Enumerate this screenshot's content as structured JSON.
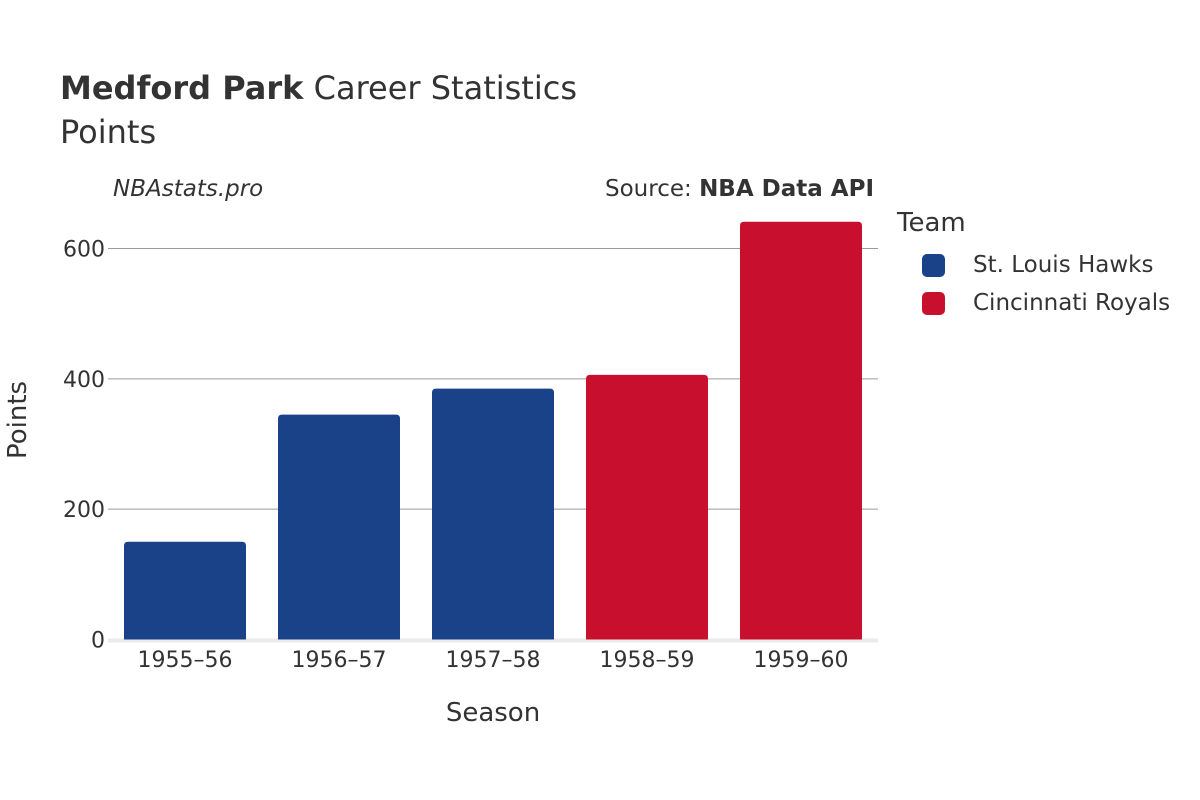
{
  "header": {
    "title_bold": "Medford Park",
    "title_rest": "Career Statistics",
    "subtitle": "Points",
    "site": "NBAstats.pro",
    "source_prefix": "Source: ",
    "source_bold": "NBA Data API"
  },
  "legend": {
    "title": "Team",
    "items": [
      {
        "label": "St. Louis Hawks",
        "color": "#1a4289"
      },
      {
        "label": "Cincinnati Royals",
        "color": "#c8102e"
      }
    ]
  },
  "chart_data": {
    "type": "bar",
    "xlabel": "Season",
    "ylabel": "Points",
    "ylim": [
      0,
      650
    ],
    "yticks": [
      0,
      200,
      400,
      600
    ],
    "grid": true,
    "legend_placement": "right",
    "categories": [
      "1955–56",
      "1956–57",
      "1957–58",
      "1958–59",
      "1959–60"
    ],
    "values": [
      150,
      345,
      385,
      406,
      641
    ],
    "teams": [
      "St. Louis Hawks",
      "St. Louis Hawks",
      "St. Louis Hawks",
      "Cincinnati Royals",
      "Cincinnati Royals"
    ]
  }
}
